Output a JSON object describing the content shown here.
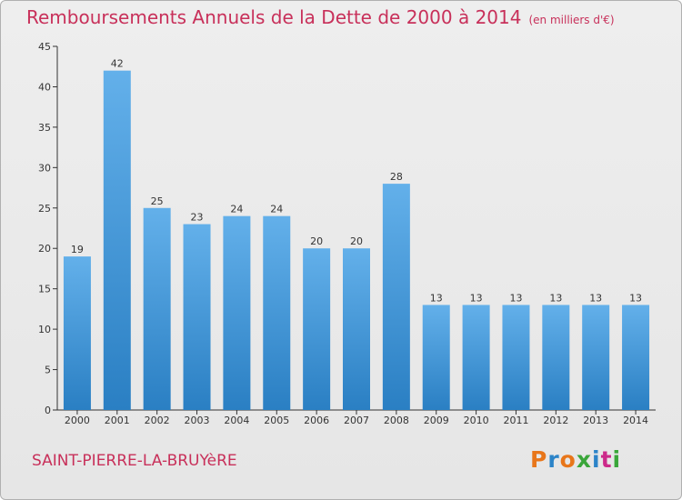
{
  "header": {
    "title": "Remboursements Annuels de la Dette de 2000 à 2014",
    "unit": "(en milliers d'€)"
  },
  "footer": {
    "town": "SAINT-PIERRE-LA-BRUYèRE",
    "logo": "Proxiti"
  },
  "colors": {
    "bar_top": "#63b0ea",
    "bar_bottom": "#2a7fc3",
    "title": "#c8305a",
    "logo_letters": [
      "#e8761a",
      "#2c84c8",
      "#e8761a",
      "#3aa63a",
      "#2c84c8",
      "#cc2a8a",
      "#3aa63a"
    ]
  },
  "chart_data": {
    "type": "bar",
    "title": "Remboursements Annuels de la Dette de 2000 à 2014",
    "xlabel": "",
    "ylabel": "",
    "categories": [
      "2000",
      "2001",
      "2002",
      "2003",
      "2004",
      "2005",
      "2006",
      "2007",
      "2008",
      "2009",
      "2010",
      "2011",
      "2012",
      "2013",
      "2014"
    ],
    "values": [
      19,
      42,
      25,
      23,
      24,
      24,
      20,
      20,
      28,
      13,
      13,
      13,
      13,
      13,
      13
    ],
    "data_labels": [
      "19",
      "42",
      "25",
      "23",
      "24",
      "24",
      "20",
      "20",
      "28",
      "13",
      "13",
      "13",
      "13",
      "13",
      "13"
    ],
    "ylim": [
      0,
      45
    ],
    "yticks": [
      "0",
      "5",
      "10",
      "15",
      "20",
      "25",
      "30",
      "35",
      "40",
      "45"
    ],
    "grid": false,
    "legend": "none"
  }
}
